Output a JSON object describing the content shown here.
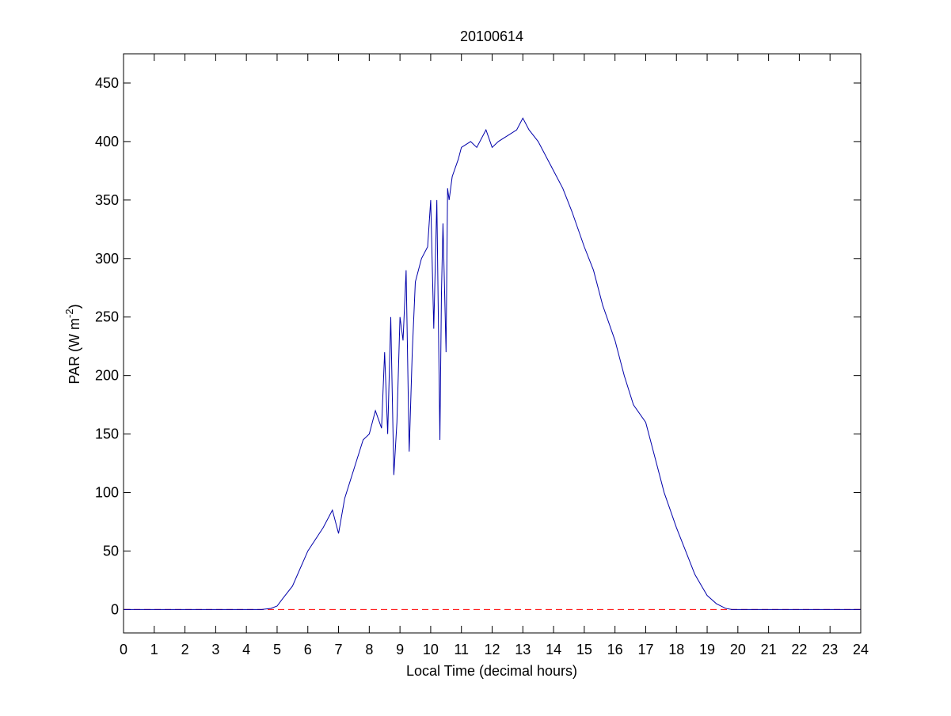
{
  "chart_data": {
    "type": "line",
    "title": "20100614",
    "xlabel": "Local Time (decimal hours)",
    "ylabel": {
      "text": "PAR (W m",
      "sup": "-2",
      "end": ")"
    },
    "xlim": [
      0,
      24
    ],
    "xticks": [
      0,
      1,
      2,
      3,
      4,
      5,
      6,
      7,
      8,
      9,
      10,
      11,
      12,
      13,
      14,
      15,
      16,
      17,
      18,
      19,
      20,
      21,
      22,
      23,
      24
    ],
    "ylim": [
      -20,
      475
    ],
    "yticks": [
      0,
      50,
      100,
      150,
      200,
      250,
      300,
      350,
      400,
      450
    ],
    "reference_line": {
      "value": 0,
      "color": "#ff0000"
    },
    "series": [
      {
        "color": "#0000aa",
        "x": [
          0,
          4.5,
          4.8,
          5.0,
          5.2,
          5.5,
          6,
          6.5,
          6.8,
          7.0,
          7.2,
          7.5,
          7.8,
          8.0,
          8.2,
          8.4,
          8.5,
          8.6,
          8.7,
          8.8,
          8.9,
          9.0,
          9.1,
          9.2,
          9.3,
          9.4,
          9.5,
          9.7,
          9.9,
          10.0,
          10.1,
          10.2,
          10.3,
          10.35,
          10.4,
          10.5,
          10.55,
          10.6,
          10.7,
          10.9,
          11.0,
          11.3,
          11.5,
          11.8,
          12.0,
          12.2,
          12.5,
          12.8,
          13.0,
          13.2,
          13.5,
          13.8,
          14.0,
          14.3,
          14.6,
          15.0,
          15.3,
          15.6,
          16.0,
          16.3,
          16.6,
          17.0,
          17.3,
          17.6,
          18.0,
          18.3,
          18.6,
          19.0,
          19.3,
          19.6,
          19.8,
          20.0,
          24
        ],
        "values": [
          0,
          0,
          1,
          3,
          10,
          20,
          50,
          70,
          85,
          65,
          95,
          120,
          145,
          150,
          170,
          155,
          220,
          150,
          250,
          115,
          160,
          250,
          230,
          290,
          135,
          220,
          280,
          300,
          310,
          350,
          240,
          350,
          145,
          270,
          330,
          220,
          360,
          350,
          370,
          385,
          395,
          400,
          395,
          410,
          395,
          400,
          405,
          410,
          420,
          410,
          400,
          385,
          375,
          360,
          340,
          310,
          290,
          260,
          230,
          200,
          175,
          160,
          130,
          100,
          70,
          50,
          30,
          12,
          5,
          1,
          0,
          0,
          0
        ]
      }
    ]
  }
}
